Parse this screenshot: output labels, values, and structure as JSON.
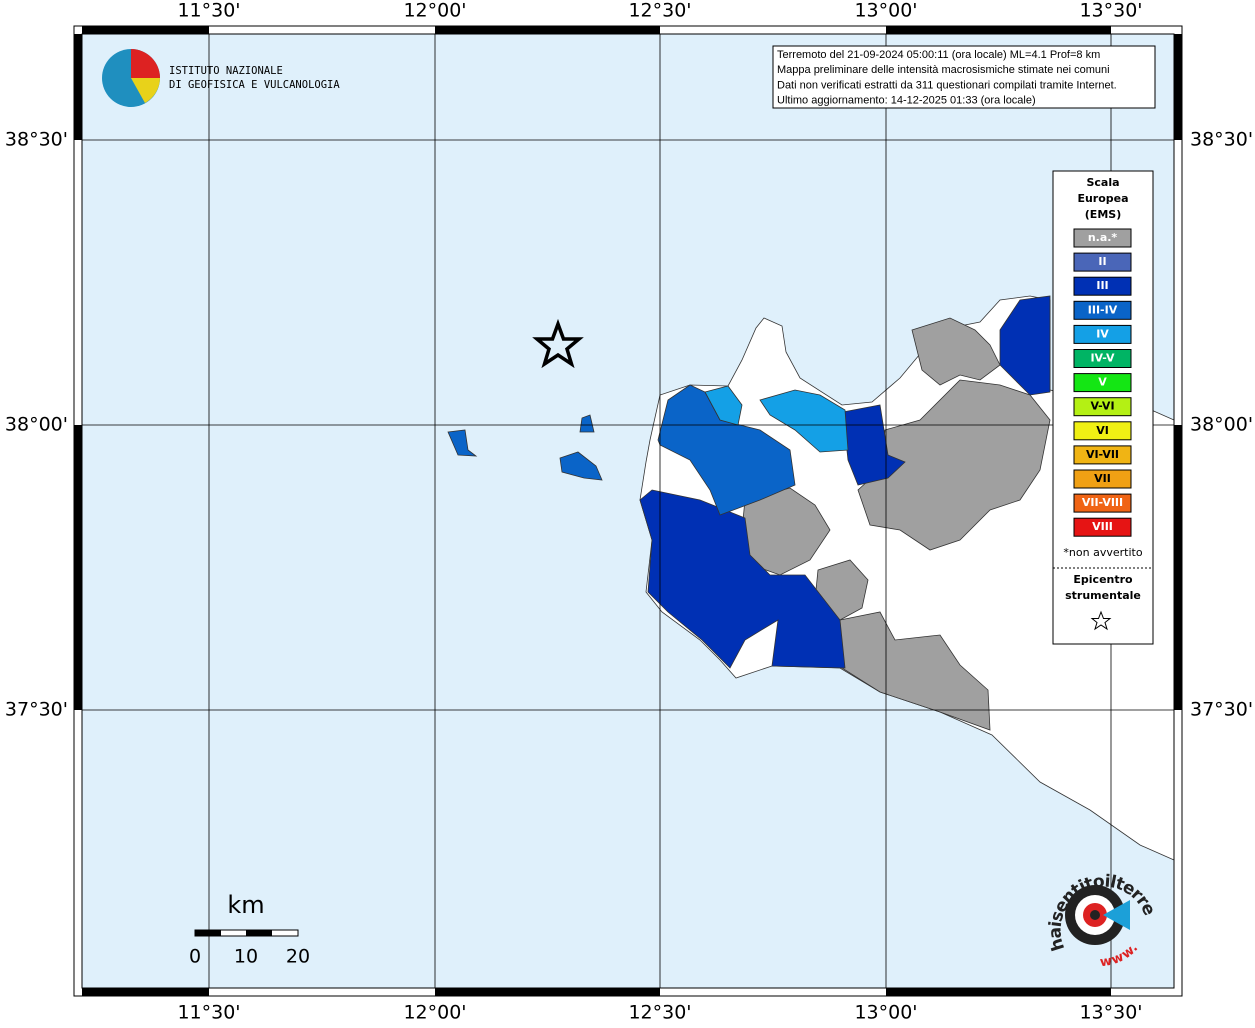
{
  "header": {
    "institute": [
      "ISTITUTO NAZIONALE",
      "DI GEOFISICA E VULCANOLOGIA"
    ],
    "info": [
      "Terremoto del 21-09-2024 05:00:11 (ora locale) ML=4.1 Prof=8 km",
      "Mappa preliminare delle intensità macrosismiche stimate nei comuni",
      "Dati non verificati estratti da 311 questionari compilati tramite Internet.",
      "Ultimo aggiornamento: 14-12-2025 01:33 (ora locale)"
    ]
  },
  "axes": {
    "lon_labels": [
      "11°30'",
      "12°00'",
      "12°30'",
      "13°00'",
      "13°30'"
    ],
    "lat_labels": [
      "38°30'",
      "38°00'",
      "37°30'"
    ]
  },
  "legend": {
    "title": [
      "Scala",
      "Europea",
      "(EMS)"
    ],
    "items": [
      {
        "label": "n.a.*",
        "color": "#a0a0a0"
      },
      {
        "label": "II",
        "color": "#4a66b8"
      },
      {
        "label": "III",
        "color": "#0030b4"
      },
      {
        "label": "III-IV",
        "color": "#0a64c8"
      },
      {
        "label": "IV",
        "color": "#14a0e6"
      },
      {
        "label": "IV-V",
        "color": "#00b464"
      },
      {
        "label": "V",
        "color": "#14e614"
      },
      {
        "label": "V-VI",
        "color": "#b4f014"
      },
      {
        "label": "VI",
        "color": "#f0f014"
      },
      {
        "label": "VI-VII",
        "color": "#f0b414"
      },
      {
        "label": "VII",
        "color": "#f0a014"
      },
      {
        "label": "VII-VIII",
        "color": "#f06414"
      },
      {
        "label": "VIII",
        "color": "#e61414"
      }
    ],
    "note": "*non avvertito",
    "epicenter": [
      "Epicentro",
      "strumentale"
    ]
  },
  "scale_bar": {
    "unit": "km",
    "labels": [
      "0",
      "10",
      "20"
    ]
  },
  "footer_logo": {
    "site": "haisentitoilterremoto.it",
    "www": "www."
  }
}
